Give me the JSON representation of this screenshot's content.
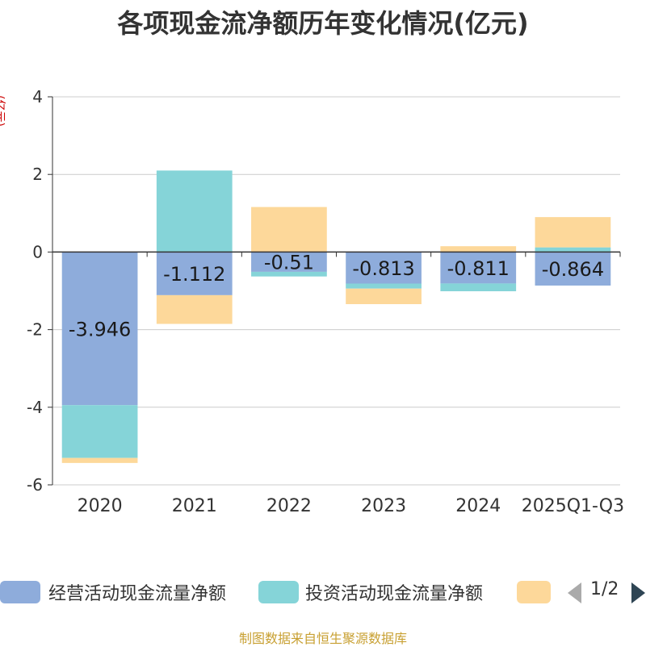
{
  "title": "各项现金流净额历年变化情况(亿元)",
  "unit_label": "(亿元)",
  "footer": "制图数据来自恒生聚源数据库",
  "colors": {
    "operating": "#8eacdb",
    "investing": "#85d4d8",
    "financing": "#fdd89a",
    "axis": "#333333",
    "grid": "#cccccc",
    "pager_active": "#2f4554",
    "pager_inactive": "#aaaaaa"
  },
  "legend": {
    "items": [
      "经营活动现金流量净额",
      "投资活动现金流量净额",
      ""
    ],
    "pager": "1/2",
    "prev_icon": "triangle-left-icon",
    "next_icon": "triangle-right-icon"
  },
  "chart_data": {
    "type": "bar",
    "stacked": true,
    "categories": [
      "2020",
      "2021",
      "2022",
      "2023",
      "2024",
      "2025Q1-Q3"
    ],
    "ylim": [
      -6,
      4
    ],
    "yticks": [
      4,
      2,
      0,
      -2,
      -4,
      -6
    ],
    "grid": true,
    "legend_position": "bottom",
    "series": [
      {
        "name": "经营活动现金流量净额",
        "values": [
          -3.946,
          -1.112,
          -0.51,
          -0.813,
          -0.811,
          -0.864
        ],
        "labels": [
          "-3.946",
          "-1.112",
          "-0.51",
          "-0.813",
          "-0.811",
          "-0.864"
        ]
      },
      {
        "name": "投资活动现金流量净额",
        "values": [
          -1.36,
          2.1,
          -0.12,
          -0.13,
          -0.2,
          0.12
        ],
        "labels": []
      },
      {
        "name": "",
        "values": [
          -0.13,
          -0.74,
          1.16,
          -0.4,
          0.15,
          0.78
        ],
        "labels": []
      }
    ]
  }
}
